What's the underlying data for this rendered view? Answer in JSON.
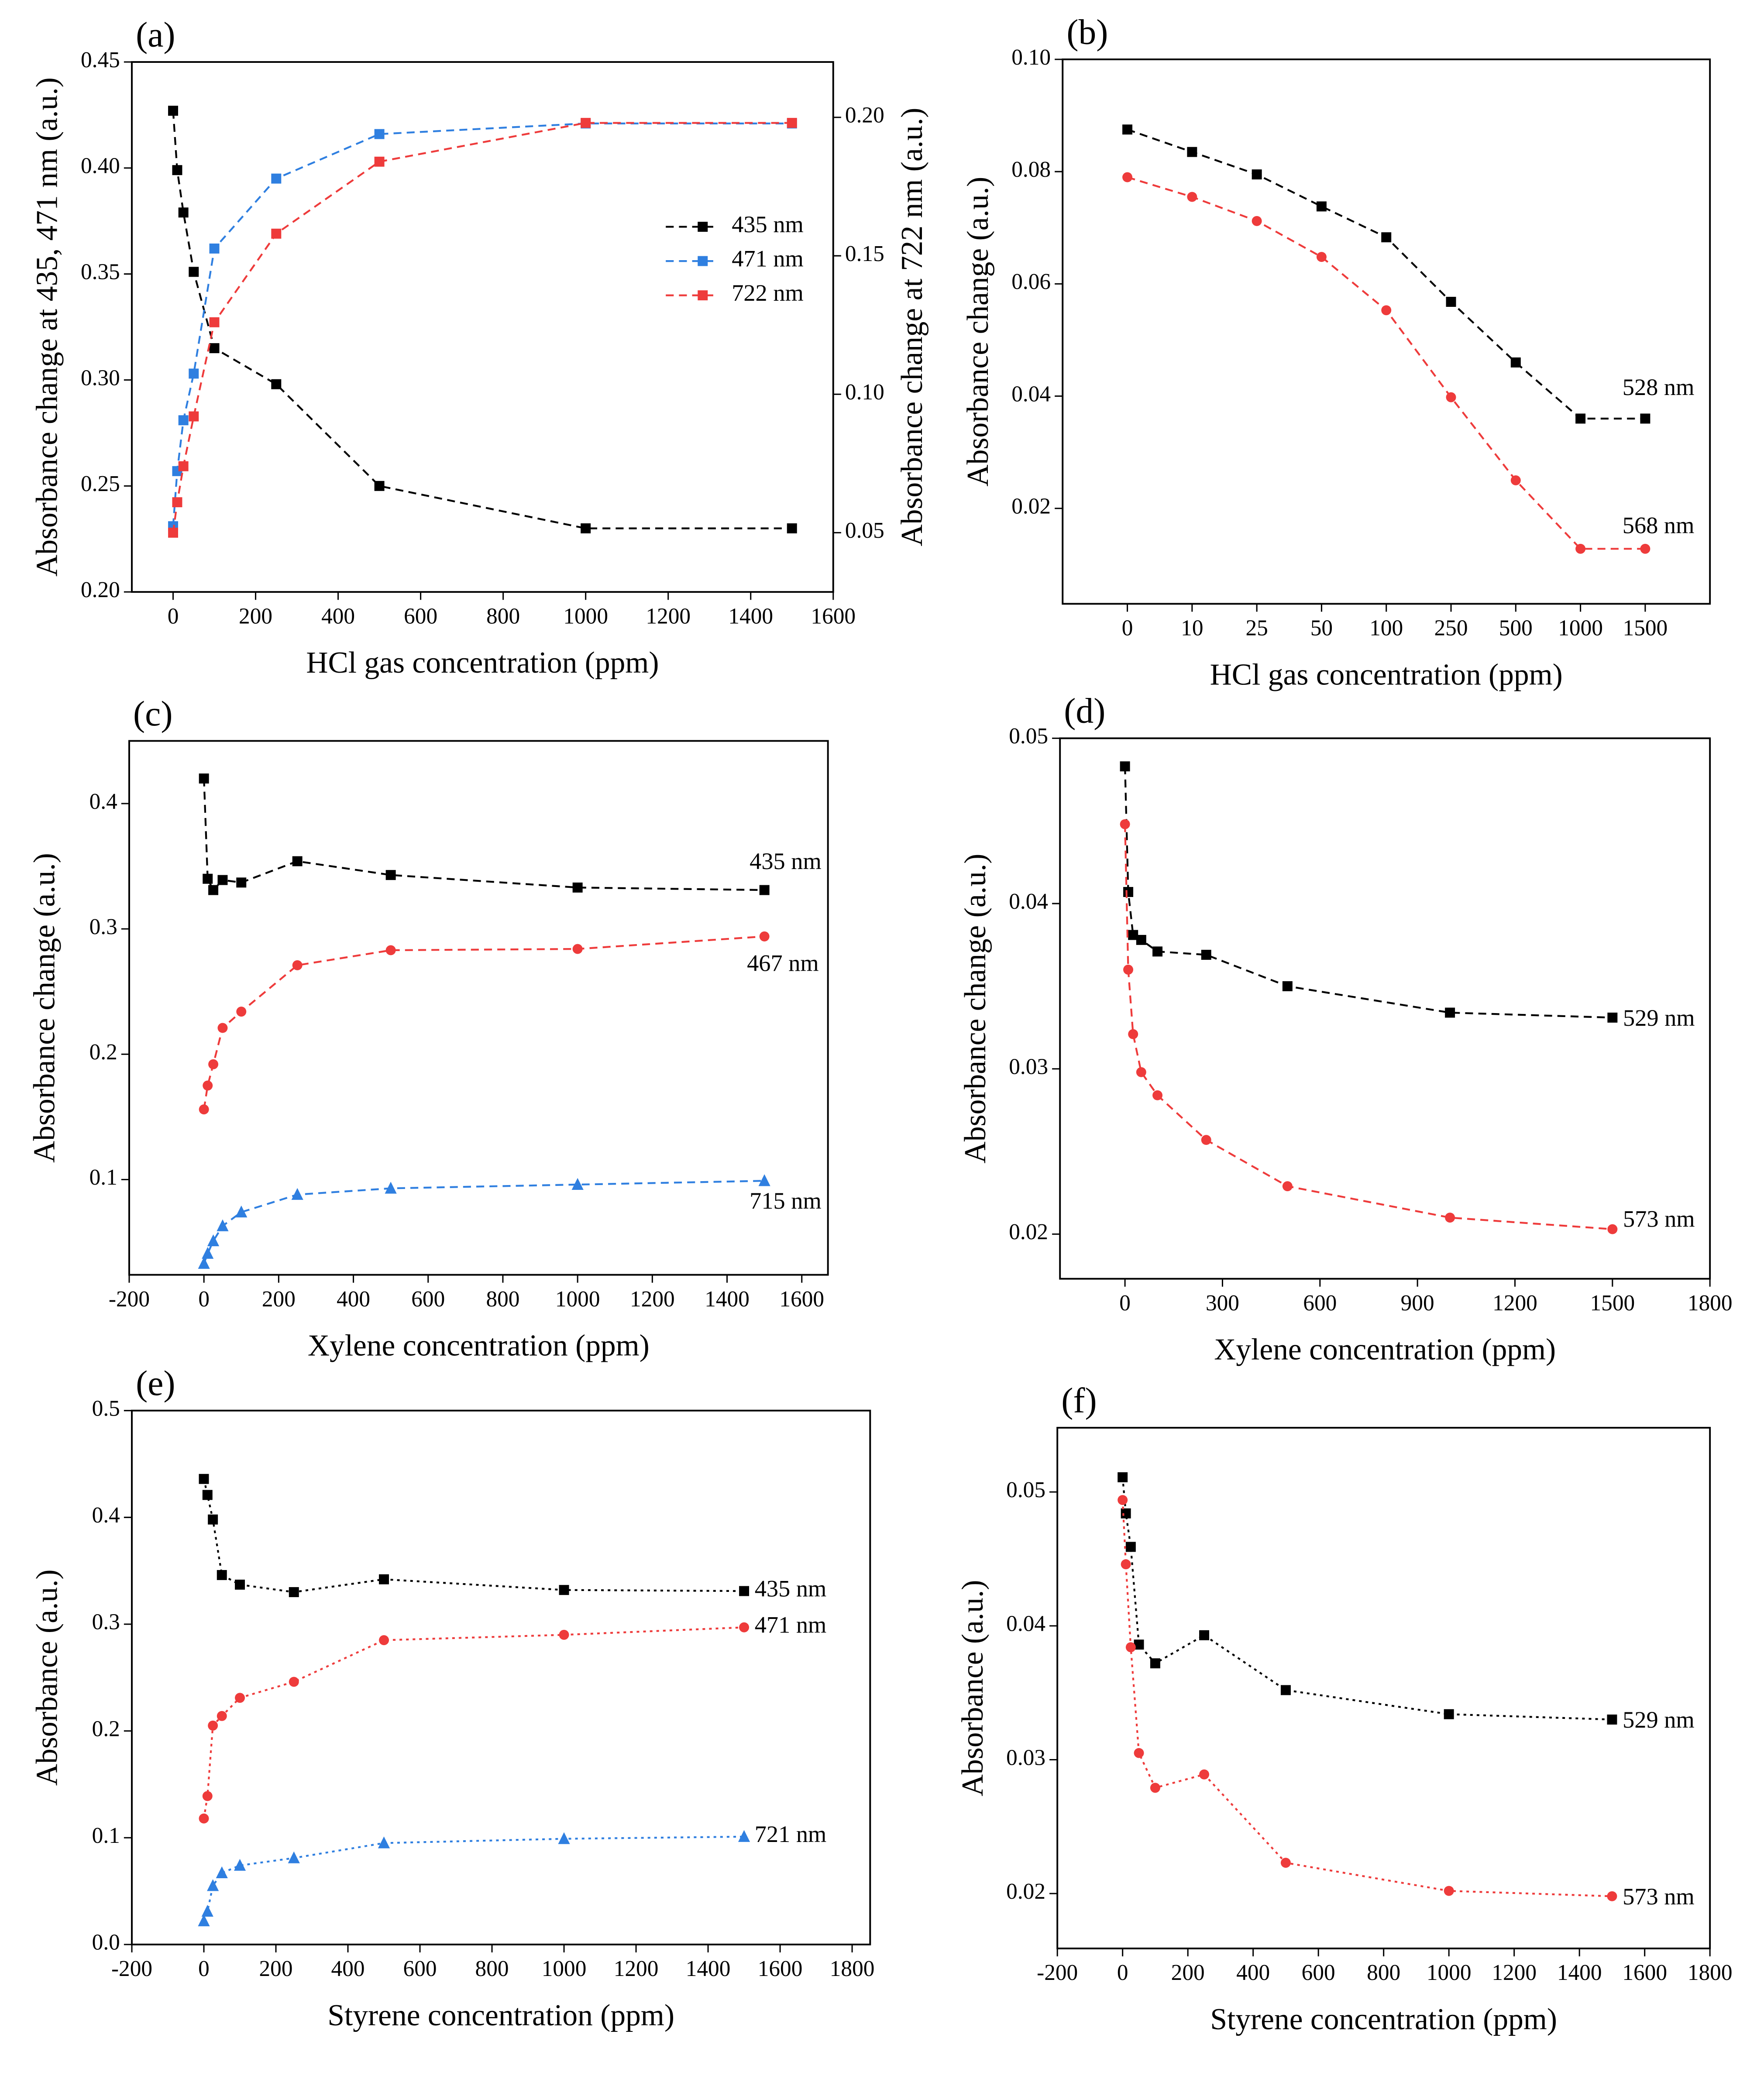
{
  "chart_data": [
    {
      "type": "line",
      "label": "(a)",
      "xlabel": "HCl gas concentration (ppm)",
      "ylabel": "Absorbance change at 435, 471 nm (a.u.)",
      "y2label": "Absorbance change at 722 nm (a.u.)",
      "x": [
        0,
        10,
        25,
        50,
        100,
        250,
        500,
        1000,
        1500
      ],
      "xlim": [
        -100,
        1600
      ],
      "xticks": [
        0,
        200,
        400,
        600,
        800,
        1000,
        1200,
        1400,
        1600
      ],
      "ylim": [
        0.2,
        0.45
      ],
      "yticks": [
        {
          "value": 0.2,
          "label": "0.20"
        },
        0.25,
        {
          "value": 0.3,
          "label": "0.30"
        },
        0.35,
        {
          "value": 0.4,
          "label": "0.40"
        },
        0.45
      ],
      "y2lim": [
        0.0286,
        0.22
      ],
      "y2ticks": [
        0.05,
        {
          "value": 0.1,
          "label": "0.10"
        },
        0.15,
        {
          "value": 0.2,
          "label": "0.20"
        }
      ],
      "legend": "right",
      "series": [
        {
          "name": "435 nm",
          "color": "#000000",
          "marker": "square",
          "linestyle": "dashed",
          "values": [
            0.427,
            0.399,
            0.379,
            0.351,
            0.315,
            0.298,
            0.25,
            0.23,
            0.23
          ]
        },
        {
          "name": "471 nm",
          "color": "#2f7fe0",
          "marker": "square",
          "linestyle": "dashed",
          "values": [
            0.231,
            0.257,
            0.281,
            0.303,
            0.362,
            0.395,
            0.416,
            0.421,
            0.421
          ]
        },
        {
          "name": "722 nm",
          "color": "#ee3b3b",
          "marker": "square",
          "linestyle": "dashed",
          "axis": "y2",
          "values": [
            0.05,
            0.061,
            0.074,
            0.092,
            0.126,
            0.158,
            0.184,
            0.198,
            0.198
          ]
        }
      ]
    },
    {
      "type": "line",
      "label": "(b)",
      "xlabel": "HCl gas concentration (ppm)",
      "ylabel": "Absorbance change (a.u.)",
      "categories": [
        "0",
        "10",
        "25",
        "50",
        "100",
        "250",
        "500",
        "1000",
        "1500"
      ],
      "ylim": [
        0.003,
        0.1
      ],
      "yticks": [
        0.02,
        0.04,
        0.06,
        0.08,
        {
          "value": 0.1,
          "label": "0.10"
        }
      ],
      "series": [
        {
          "name": "528 nm",
          "color": "#000000",
          "marker": "square",
          "linestyle": "dashed",
          "values": [
            0.0875,
            0.0835,
            0.0795,
            0.0738,
            0.0683,
            0.0568,
            0.046,
            0.036,
            0.036
          ]
        },
        {
          "name": "568 nm",
          "color": "#ee3b3b",
          "marker": "circle",
          "linestyle": "dashed",
          "values": [
            0.079,
            0.0755,
            0.0712,
            0.0648,
            0.0553,
            0.0398,
            0.025,
            0.0128,
            0.0128
          ]
        }
      ]
    },
    {
      "type": "line",
      "label": "(c)",
      "xlabel": "Xylene concentration (ppm)",
      "ylabel": "Absorbance change (a.u.)",
      "x": [
        0,
        10,
        25,
        50,
        100,
        250,
        500,
        1000,
        1500
      ],
      "xlim": [
        -200,
        1670
      ],
      "xticks": [
        -200,
        0,
        200,
        400,
        600,
        800,
        1000,
        1200,
        1400,
        1600
      ],
      "ylim": [
        0.024,
        0.45
      ],
      "yticks": [
        0.1,
        0.2,
        0.3,
        0.4
      ],
      "series": [
        {
          "name": "435 nm",
          "color": "#000000",
          "marker": "square",
          "linestyle": "dashed",
          "values": [
            0.42,
            0.34,
            0.331,
            0.339,
            0.337,
            0.354,
            0.343,
            0.333,
            0.331
          ]
        },
        {
          "name": "467 nm",
          "color": "#ee3b3b",
          "marker": "circle",
          "linestyle": "dashed",
          "values": [
            0.156,
            0.175,
            0.192,
            0.221,
            0.234,
            0.271,
            0.283,
            0.284,
            0.294
          ]
        },
        {
          "name": "715 nm",
          "color": "#2f7fe0",
          "marker": "triangle",
          "linestyle": "dashed",
          "values": [
            0.033,
            0.041,
            0.051,
            0.063,
            0.074,
            0.088,
            0.093,
            0.096,
            0.099
          ]
        }
      ]
    },
    {
      "type": "line",
      "label": "(d)",
      "xlabel": "Xylene concentration (ppm)",
      "ylabel": "Absorbance change (a.u.)",
      "x": [
        0,
        10,
        25,
        50,
        100,
        250,
        500,
        1000,
        1500
      ],
      "xlim": [
        -200,
        1800
      ],
      "xticks": [
        0,
        300,
        600,
        900,
        1200,
        1500,
        1800
      ],
      "ylim": [
        0.0173,
        0.05
      ],
      "yticks": [
        0.02,
        0.03,
        0.04,
        0.05
      ],
      "series": [
        {
          "name": "529 nm",
          "color": "#000000",
          "marker": "square",
          "linestyle": "dashed",
          "values": [
            0.0483,
            0.0407,
            0.0381,
            0.0378,
            0.0371,
            0.0369,
            0.035,
            0.0334,
            0.0331
          ]
        },
        {
          "name": "573 nm",
          "color": "#ee3b3b",
          "marker": "circle",
          "linestyle": "dashed",
          "values": [
            0.0448,
            0.036,
            0.0321,
            0.0298,
            0.0284,
            0.0257,
            0.0229,
            0.021,
            0.0203
          ]
        }
      ]
    },
    {
      "type": "line",
      "label": "(e)",
      "xlabel": "Styrene concentration (ppm)",
      "ylabel": "Absorbance (a.u.)",
      "x": [
        0,
        10,
        25,
        50,
        100,
        250,
        500,
        1000,
        1500
      ],
      "xlim": [
        -200,
        1850
      ],
      "xticks": [
        -200,
        0,
        200,
        400,
        600,
        800,
        1000,
        1200,
        1400,
        1600,
        1800
      ],
      "ylim": [
        0,
        0.5
      ],
      "yticks": [
        {
          "value": 0,
          "label": "0.0"
        },
        0.1,
        0.2,
        0.3,
        0.4,
        {
          "value": 0.5,
          "label": "0.5"
        }
      ],
      "series": [
        {
          "name": "435 nm",
          "color": "#000000",
          "marker": "square",
          "linestyle": "dotted",
          "values": [
            0.436,
            0.421,
            0.398,
            0.346,
            0.337,
            0.33,
            0.342,
            0.332,
            0.331
          ]
        },
        {
          "name": "471 nm",
          "color": "#ee3b3b",
          "marker": "circle",
          "linestyle": "dotted",
          "values": [
            0.118,
            0.139,
            0.205,
            0.214,
            0.231,
            0.246,
            0.285,
            0.29,
            0.297
          ]
        },
        {
          "name": "721 nm",
          "color": "#2f7fe0",
          "marker": "triangle",
          "linestyle": "dotted",
          "values": [
            0.022,
            0.031,
            0.055,
            0.067,
            0.074,
            0.081,
            0.095,
            0.099,
            0.101
          ]
        }
      ]
    },
    {
      "type": "line",
      "label": "(f)",
      "xlabel": "Styrene concentration (ppm)",
      "ylabel": "Absorbance (a.u.)",
      "x": [
        0,
        10,
        25,
        50,
        100,
        250,
        500,
        1000,
        1500
      ],
      "xlim": [
        -200,
        1800
      ],
      "xticks": [
        -200,
        0,
        200,
        400,
        600,
        800,
        1000,
        1200,
        1400,
        1600,
        1800
      ],
      "ylim": [
        0.0159,
        0.0548
      ],
      "yticks": [
        0.02,
        0.03,
        0.04,
        0.05
      ],
      "series": [
        {
          "name": "529 nm",
          "color": "#000000",
          "marker": "square",
          "linestyle": "dotted",
          "values": [
            0.0511,
            0.0484,
            0.0459,
            0.0386,
            0.0372,
            0.0393,
            0.0352,
            0.0334,
            0.033
          ]
        },
        {
          "name": "573 nm",
          "color": "#ee3b3b",
          "marker": "circle",
          "linestyle": "dotted",
          "values": [
            0.0494,
            0.0446,
            0.0384,
            0.0305,
            0.0279,
            0.0289,
            0.0223,
            0.0202,
            0.0198
          ]
        }
      ]
    }
  ]
}
